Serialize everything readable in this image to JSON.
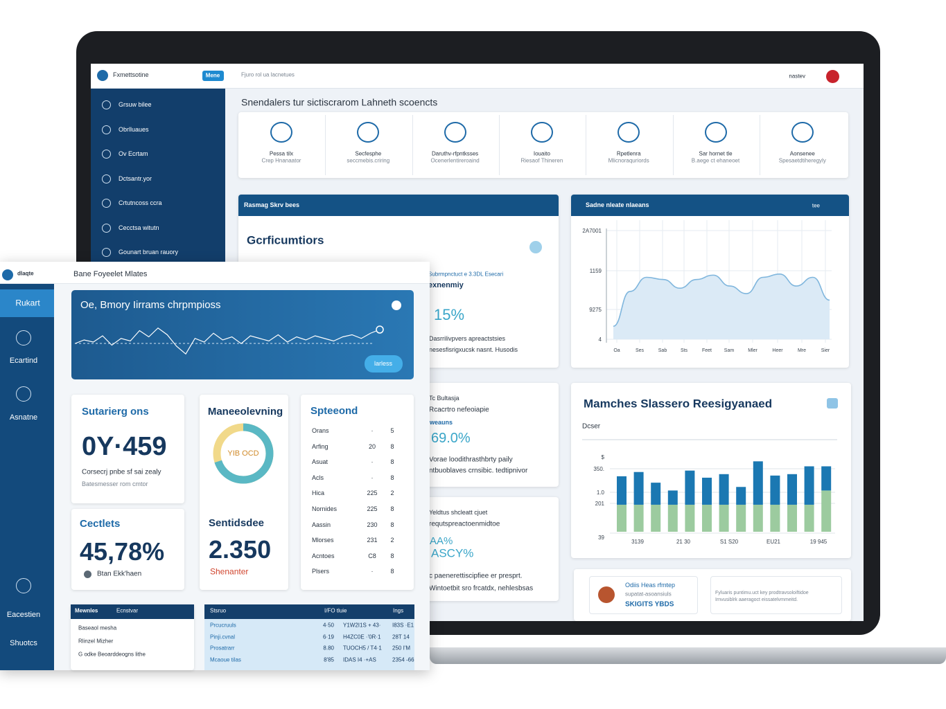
{
  "laptop": {
    "brand": "Fxmettsotine",
    "badge": "Mene",
    "search": "Fjuro rol ua lacnetues",
    "user": "nastev",
    "nav": [
      "Grsuw bilee",
      "Obrlluaues",
      "Ov Ecrtam",
      "Dctsantr.yor",
      "Crtutncoss ccra",
      "Cecctsa witutn",
      "Gounart bruan rauory"
    ],
    "heading": "Snendalers tur sictiscrarom Lahneth scoencts",
    "features": [
      {
        "title": "Pessa tilx",
        "subtitle": "Crep Hnanaator"
      },
      {
        "title": "Secfesphe",
        "subtitle": "seccmebis.criring"
      },
      {
        "title": "Daruthv-rfpntksses",
        "subtitle": "Ocenerlentireroaind"
      },
      {
        "title": "Iouaito",
        "subtitle": "Riesaof Thineren"
      },
      {
        "title": "Rpetlenra",
        "subtitle": "Mlicnoraquriords"
      },
      {
        "title": "Sar hornet tle",
        "subtitle": "B.aege ct ehaneoet"
      },
      {
        "title": "Aonsenee",
        "subtitle": "Spesaetdtiheregyly"
      }
    ],
    "overview": {
      "header": "Rasmag Skrv bees",
      "title": "Gcrficumtiors",
      "label": "Subrmpnctuct e 3.3DL Esecari",
      "subtitle": "exnenmiy",
      "value": "15%",
      "text": [
        "Dasrrilivpvers apreactstsies",
        "nesesfisrigxucsk nasnt. Husodis"
      ]
    },
    "trend": {
      "header": "Sadne nleate nlaeans",
      "action": "tee",
      "ylabels": [
        "2A7001",
        "1159",
        "9275",
        "4"
      ],
      "xlabels": [
        "Oa",
        "Ses",
        "Sab",
        "Sts",
        "Feet",
        "Sam",
        "Mler",
        "Heer",
        "Mre",
        "Sier"
      ],
      "ylim": [
        0,
        100
      ],
      "color": "#7fb6dd",
      "values": [
        12,
        44,
        57,
        55,
        47,
        55,
        59,
        49,
        42,
        57,
        60,
        49,
        57,
        36
      ]
    },
    "card_a": {
      "title": "Tc Bultasja",
      "subtitle": "Rcacrtro nefeoiapie",
      "label": "weauns",
      "value": "69.0%",
      "text": [
        "Vorae loodithrasthbrty paily",
        "ntbuoblaves crnsibic. tedtipnivor"
      ]
    },
    "card_b": {
      "title": "Yeldtus shcleatt cjuet",
      "subtitle": "requtspreactoenmidtoe",
      "label": "AA%",
      "value": "ASCY%",
      "text": [
        "c paenerettiscipfiee er presprt.",
        "Wintoetbit sro frcatdx, nehlesbsas"
      ]
    },
    "bars": {
      "title": "Mamches Slassero Reesigyanaed",
      "subtitle": "Dcser",
      "ylabels": [
        "$",
        "350.",
        "1.0",
        "201",
        "39"
      ],
      "xlabels": [
        "3139",
        "21 30",
        "S1 S20",
        "EU21",
        "19 945"
      ],
      "ylim": [
        0,
        110
      ],
      "series": [
        {
          "color": "#9ccb9f",
          "values": [
            38,
            38,
            38,
            38,
            38,
            38,
            38,
            38,
            38,
            38,
            38,
            38,
            58
          ]
        },
        {
          "color": "#1b78b2",
          "values": [
            40,
            46,
            31,
            20,
            48,
            38,
            43,
            25,
            61,
            41,
            43,
            54,
            34
          ]
        }
      ]
    },
    "promo": {
      "title": "Odiis Heas rfmtep",
      "subtitle": "supatat-asoansiuls",
      "code": "SKIGITS YBDS",
      "text": [
        "Fyluaris puntimu.uct key prodtravsoloiftidoe",
        "Irnvusiblrk aaeragoct eissatelvmmeitd."
      ]
    }
  },
  "window": {
    "logo": "dlaqte",
    "title": "Bane Foyeelet Mlates",
    "nav": [
      "Rukart",
      "Ecartind",
      "Asnatne",
      "Eacestien",
      "Shuotcs"
    ],
    "hero": {
      "title": "Oe, Bmory Iirrams chrpmpioss",
      "button": "larless",
      "ylim": [
        0,
        100
      ],
      "values": [
        45,
        52,
        48,
        60,
        42,
        55,
        50,
        70,
        58,
        75,
        62,
        40,
        25,
        55,
        48,
        65,
        52,
        58,
        45,
        60,
        55,
        50,
        62,
        48,
        58,
        52,
        60,
        55,
        50,
        58,
        62,
        55,
        65,
        72
      ]
    },
    "stat1": {
      "title": "Sutarierg ons",
      "value": "0Y·459",
      "text": [
        "Corsecrj pnbe sf sai zealy",
        "Batesmesser rom cmtor"
      ]
    },
    "stat2": {
      "title": "Cectlets",
      "value": "45,78%",
      "note": "Btan Ekk'haen"
    },
    "gauge": {
      "title": "Maneeolevning",
      "label": "YIB OCD",
      "value": 70,
      "subtitle": "Sentidsdee",
      "amount": "2.350",
      "note": "Shenanter"
    },
    "list": {
      "title": "Spteeond",
      "rows": [
        [
          "Orans",
          "·",
          "5"
        ],
        [
          "Arfing",
          "20",
          "8"
        ],
        [
          "Asuat",
          "·",
          "8"
        ],
        [
          "Acls",
          "·",
          "8"
        ],
        [
          "Hica",
          "225",
          "2"
        ],
        [
          "Nornides",
          "225",
          "8"
        ],
        [
          "Aassin",
          "230",
          "8"
        ],
        [
          "Mlorses",
          "231",
          "2"
        ],
        [
          "Acntoes",
          "C8",
          "8"
        ],
        [
          "Plsers",
          "·",
          "8"
        ]
      ]
    },
    "table1": {
      "columns": [
        "Mewnles",
        "Ecnstvar"
      ],
      "rows": [
        "Baseaol mesha",
        "Rlinzel Mizher",
        "G odke Beoarddeogns lithe"
      ]
    },
    "table2": {
      "columns": [
        "Stsruo",
        "I/FO tluie",
        "Ings"
      ],
      "rows": [
        [
          "Prcucruuls",
          "4·50",
          "Y1W2I1S + 43·",
          "I83S ·E1"
        ],
        [
          "Pinji.cvnal",
          "6·19",
          "H4ZC0E ·'0R·1",
          "28T 14"
        ],
        [
          "Prosatrarr",
          "8.80",
          "TUOCH5 / T4·1",
          "250 I'M"
        ],
        [
          "Mcaoue tilas",
          "8'85",
          "IDAS I4 ·+AS",
          "2354 -66"
        ]
      ]
    }
  }
}
